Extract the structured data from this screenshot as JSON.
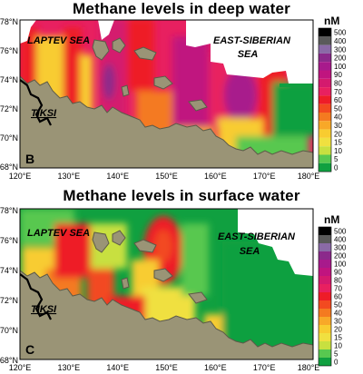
{
  "panels": [
    {
      "title": "Methane levels in deep water",
      "panel_letter": "B",
      "regions": {
        "laptev": "LAPTEV SEA",
        "east_siberian_1": "EAST-SIBERIAN",
        "east_siberian_2": "SEA",
        "tiksi": "TIKSI"
      }
    },
    {
      "title": "Methane levels in surface water",
      "panel_letter": "C",
      "regions": {
        "laptev": "LAPTEV SEA",
        "east_siberian_1": "EAST-SIBERIAN",
        "east_siberian_2": "SEA",
        "tiksi": "TIKSI"
      }
    }
  ],
  "axes": {
    "lat_labels": [
      "78°N",
      "76°N",
      "74°N",
      "72°N",
      "70°N",
      "68°N"
    ],
    "lon_labels": [
      "120°E",
      "130°E",
      "140°E",
      "150°E",
      "160°E",
      "170°E",
      "180°E"
    ]
  },
  "legend": {
    "unit": "nM",
    "levels": [
      "500",
      "400",
      "300",
      "200",
      "100",
      "90",
      "80",
      "70",
      "60",
      "50",
      "40",
      "30",
      "20",
      "15",
      "10",
      "5",
      "0"
    ],
    "colors": [
      "#000000",
      "#5a5a5a",
      "#8a6aa6",
      "#8b2a8b",
      "#a81a8c",
      "#c0147f",
      "#d41a6e",
      "#e82060",
      "#ee1c28",
      "#f24a20",
      "#f47a20",
      "#f8a828",
      "#f8cc30",
      "#f0e040",
      "#c8e040",
      "#58c850",
      "#10a040"
    ]
  },
  "colors": {
    "land": "#9a9476",
    "land_stroke": "#5c5a48",
    "no_data": "#ffffff"
  }
}
